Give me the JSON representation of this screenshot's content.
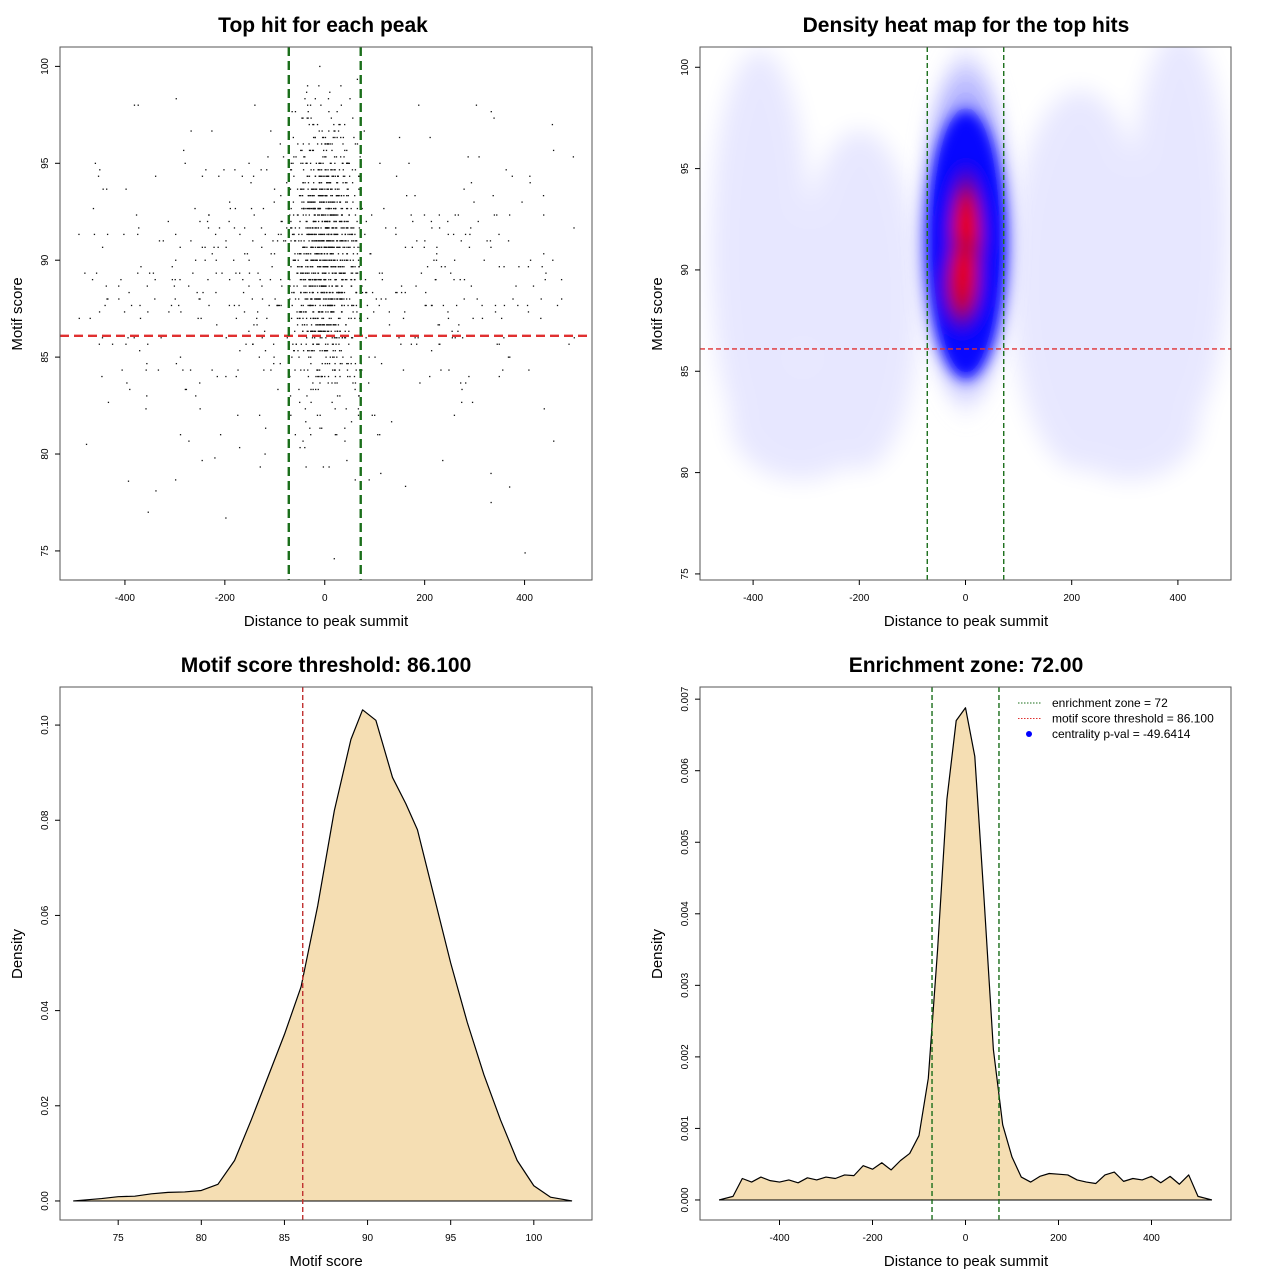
{
  "chart_data": [
    {
      "id": "scatter",
      "type": "scatter",
      "title": "Top hit for each peak",
      "xlabel": "Distance to peak summit",
      "ylabel": "Motif score",
      "xlim": [
        -530,
        535
      ],
      "ylim": [
        73.5,
        101
      ],
      "xticks": [
        -400,
        -200,
        0,
        200,
        400
      ],
      "yticks": [
        75,
        80,
        85,
        90,
        95,
        100
      ],
      "xtick_labels": [
        "-400",
        "-200",
        "0",
        "200",
        "400"
      ],
      "ytick_labels": [
        "75",
        "80",
        "85",
        "90",
        "95",
        "100"
      ],
      "hlines": [
        {
          "y": 86.1,
          "color": "#e03030",
          "style": "dashed"
        }
      ],
      "vlines": [
        {
          "x": -72,
          "color": "#1a6e1a",
          "style": "dashed"
        },
        {
          "x": 72,
          "color": "#1a6e1a",
          "style": "dashed"
        }
      ],
      "point_groups": [
        {
          "x_range": [
            -72,
            72
          ],
          "y_range": [
            80,
            99
          ],
          "count": 900,
          "x_center": 0,
          "x_sd": 30,
          "y_center": 90.3,
          "y_sd": 3.2
        },
        {
          "x_range": [
            -72,
            72
          ],
          "y_range": [
            79,
            100
          ],
          "count": 260,
          "x_center": 0,
          "x_sd": 60,
          "y_center": 90,
          "y_sd": 4.5
        },
        {
          "x_range": [
            -500,
            500
          ],
          "y_range": [
            76,
            99
          ],
          "count": 560,
          "x_center": 0,
          "x_sd": 300,
          "y_center": 88.5,
          "y_sd": 3.8
        }
      ],
      "points_note_outliers": [
        [
          -198,
          76.7
        ],
        [
          19,
          74.6
        ],
        [
          401,
          74.9
        ],
        [
          -338,
          78.1
        ],
        [
          -393,
          78.6
        ],
        [
          370,
          78.3
        ],
        [
          -220,
          79.8
        ],
        [
          -477,
          80.5
        ],
        [
          333,
          77.5
        ],
        [
          -10,
          100
        ]
      ],
      "grid": false
    },
    {
      "id": "heatmap",
      "type": "heatmap",
      "title": "Density heat map for the top hits",
      "xlabel": "Distance to peak summit",
      "ylabel": "Motif score",
      "xlim": [
        -500,
        500
      ],
      "ylim": [
        74.7,
        101
      ],
      "xticks": [
        -400,
        -200,
        0,
        200,
        400
      ],
      "yticks": [
        75,
        80,
        85,
        90,
        95,
        100
      ],
      "xtick_labels": [
        "-400",
        "-200",
        "0",
        "200",
        "400"
      ],
      "ytick_labels": [
        "75",
        "80",
        "85",
        "90",
        "95",
        "100"
      ],
      "colors": [
        "#ffffff",
        "#0000ff",
        "#ff0000"
      ],
      "hotspot": {
        "x": 0,
        "y": 91.5
      },
      "hlines": [
        {
          "y": 86.1,
          "color": "#e03030",
          "style": "dashed"
        }
      ],
      "vlines": [
        {
          "x": -72,
          "color": "#1a6e1a",
          "style": "dashed"
        },
        {
          "x": 72,
          "color": "#1a6e1a",
          "style": "dashed"
        }
      ]
    },
    {
      "id": "density_score",
      "type": "area",
      "title": "Motif score threshold: 86.100",
      "xlabel": "Motif score",
      "ylabel": "Density",
      "xlim": [
        71.5,
        103.5
      ],
      "ylim": [
        -0.004,
        0.108
      ],
      "xticks": [
        75,
        80,
        85,
        90,
        95,
        100
      ],
      "yticks": [
        0.0,
        0.02,
        0.04,
        0.06,
        0.08,
        0.1
      ],
      "xtick_labels": [
        "75",
        "80",
        "85",
        "90",
        "95",
        "100"
      ],
      "ytick_labels": [
        "0.00",
        "0.02",
        "0.04",
        "0.06",
        "0.08",
        "0.10"
      ],
      "fill": "#f5deb3",
      "x": [
        72.3,
        74,
        75,
        76,
        77,
        78,
        79,
        80,
        81,
        82,
        83,
        84,
        85,
        86,
        87,
        88,
        89,
        89.7,
        90.5,
        91.5,
        92.3,
        93,
        94,
        95,
        96,
        97,
        98,
        99,
        100,
        101,
        102.3
      ],
      "y": [
        0.0,
        0.0005,
        0.0009,
        0.001,
        0.0015,
        0.0018,
        0.0019,
        0.0022,
        0.0035,
        0.0085,
        0.017,
        0.026,
        0.035,
        0.045,
        0.062,
        0.082,
        0.097,
        0.1032,
        0.101,
        0.089,
        0.0835,
        0.078,
        0.064,
        0.05,
        0.0375,
        0.0265,
        0.017,
        0.0085,
        0.0032,
        0.0008,
        0.0
      ],
      "vlines": [
        {
          "x": 86.1,
          "color": "#c03030",
          "style": "dashed"
        }
      ]
    },
    {
      "id": "density_distance",
      "type": "area",
      "title": "Enrichment zone: 72.00",
      "xlabel": "Distance to peak summit",
      "ylabel": "Density",
      "xlim": [
        -571,
        571
      ],
      "ylim": [
        -0.00028,
        0.00717
      ],
      "xticks": [
        -400,
        -200,
        0,
        200,
        400
      ],
      "yticks": [
        0.0,
        0.001,
        0.002,
        0.003,
        0.004,
        0.005,
        0.006,
        0.007
      ],
      "xtick_labels": [
        "-400",
        "-200",
        "0",
        "200",
        "400"
      ],
      "ytick_labels": [
        "0.000",
        "0.001",
        "0.002",
        "0.003",
        "0.004",
        "0.005",
        "0.006",
        "0.007"
      ],
      "fill": "#f5deb3",
      "x": [
        -530,
        -500,
        -480,
        -460,
        -440,
        -420,
        -400,
        -380,
        -360,
        -340,
        -320,
        -300,
        -280,
        -260,
        -240,
        -220,
        -200,
        -180,
        -160,
        -140,
        -120,
        -100,
        -80,
        -60,
        -40,
        -20,
        0,
        20,
        40,
        60,
        80,
        100,
        120,
        140,
        160,
        180,
        200,
        220,
        240,
        260,
        280,
        300,
        320,
        340,
        360,
        380,
        400,
        420,
        440,
        460,
        480,
        500,
        530
      ],
      "y": [
        0.0,
        5e-05,
        0.0003,
        0.00025,
        0.00032,
        0.00027,
        0.00025,
        0.00028,
        0.00024,
        0.00031,
        0.00028,
        0.00032,
        0.0003,
        0.00035,
        0.00034,
        0.00048,
        0.00043,
        0.00052,
        0.00042,
        0.00055,
        0.00065,
        0.0009,
        0.0017,
        0.0035,
        0.0056,
        0.0067,
        0.00688,
        0.0062,
        0.0042,
        0.0021,
        0.00105,
        0.0006,
        0.00032,
        0.00025,
        0.00033,
        0.00037,
        0.00036,
        0.00035,
        0.00028,
        0.00025,
        0.00023,
        0.00035,
        0.00039,
        0.00026,
        0.0003,
        0.00028,
        0.00033,
        0.00024,
        0.00033,
        0.00022,
        0.00035,
        5e-05,
        0.0
      ],
      "vlines": [
        {
          "x": -72,
          "color": "#1a6e1a",
          "style": "dashed"
        },
        {
          "x": 72,
          "color": "#1a6e1a",
          "style": "dashed"
        }
      ],
      "legend": {
        "position": "top-right",
        "entries": [
          {
            "label": "enrichment zone = 72",
            "color": "#1a6e1a",
            "kind": "dotted-line"
          },
          {
            "label": "motif score threshold = 86.100",
            "color": "#e03030",
            "kind": "dotted-line"
          },
          {
            "label": "centrality p-val = -49.6414",
            "color": "#0000ff",
            "kind": "point"
          }
        ]
      }
    }
  ]
}
